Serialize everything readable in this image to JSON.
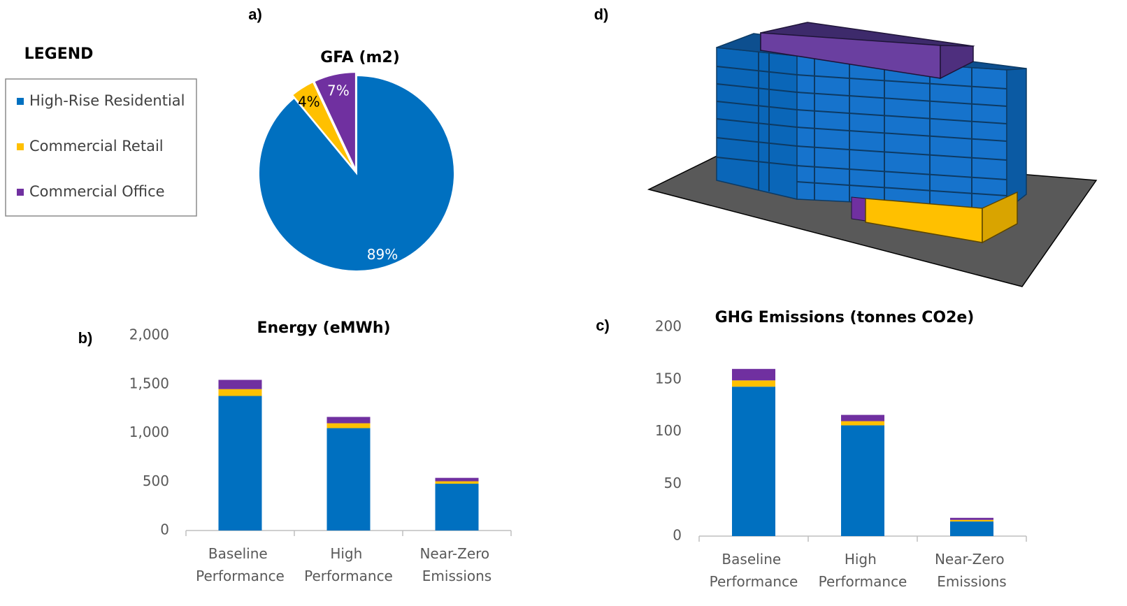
{
  "panels": [
    "a)",
    "b)",
    "c)",
    "d)"
  ],
  "legend": {
    "title": "LEGEND"
  },
  "chart_data": [
    {
      "type": "pie",
      "title": "GFA (m2)",
      "categories": [
        "High-Rise Residential",
        "Commercial Retail",
        "Commercial Office"
      ],
      "values": [
        89,
        4,
        7
      ],
      "value_labels": [
        "89%",
        "4%",
        "7%"
      ],
      "colors": [
        "#0070c0",
        "#ffc000",
        "#7030a0"
      ]
    },
    {
      "type": "bar",
      "title": "Energy (eMWh)",
      "categories": [
        "Baseline Performance",
        "High Performance",
        "Near-Zero Emissions"
      ],
      "series": [
        {
          "color": "#0070c0",
          "values": [
            1380,
            1050,
            480
          ]
        },
        {
          "color": "#ffc000",
          "values": [
            70,
            50,
            25
          ]
        },
        {
          "color": "#7030a0",
          "values": [
            95,
            65,
            35
          ]
        }
      ],
      "ylim": [
        0,
        2000
      ],
      "yticks": [
        0,
        500,
        {
          "value": 1000,
          "label": "1,000"
        },
        {
          "value": 1500,
          "label": "1,500"
        },
        {
          "value": 2000,
          "label": "2,000"
        }
      ]
    },
    {
      "type": "bar",
      "title": "GHG Emissions (tonnes CO2e)",
      "categories": [
        "Baseline Performance",
        "High Performance",
        "Near-Zero Emissions"
      ],
      "series": [
        {
          "color": "#0070c0",
          "values": [
            143,
            106,
            14
          ]
        },
        {
          "color": "#ffc000",
          "values": [
            6,
            4,
            1.5
          ]
        },
        {
          "color": "#7030a0",
          "values": [
            11,
            6,
            2
          ]
        }
      ],
      "ylim": [
        0,
        200
      ],
      "yticks": [
        0,
        50,
        100,
        150,
        200
      ]
    }
  ]
}
